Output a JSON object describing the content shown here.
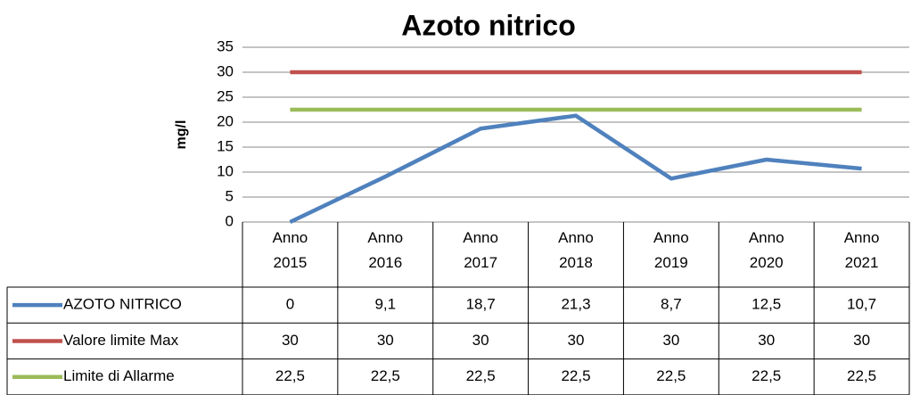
{
  "chart_data": {
    "type": "line",
    "title": "Azoto nitrico",
    "y_label": "mg/l",
    "categories": [
      "Anno 2015",
      "Anno 2016",
      "Anno 2017",
      "Anno 2018",
      "Anno 2019",
      "Anno 2020",
      "Anno 2021"
    ],
    "series": [
      {
        "name": "AZOTO NITRICO",
        "color": "#4f81bd",
        "values": [
          0,
          9.1,
          18.7,
          21.3,
          8.7,
          12.5,
          10.7
        ],
        "value_labels": [
          "0",
          "9,1",
          "18,7",
          "21,3",
          "8,7",
          "12,5",
          "10,7"
        ]
      },
      {
        "name": "Valore limite Max",
        "color": "#c0504d",
        "values": [
          30,
          30,
          30,
          30,
          30,
          30,
          30
        ]
      },
      {
        "name": "Limite di Allarme",
        "color": "#9bbb59",
        "values": [
          22.5,
          22.5,
          22.5,
          22.5,
          22.5,
          22.5,
          22.5
        ],
        "value_labels": [
          "22,5",
          "22,5",
          "22,5",
          "22,5",
          "22,5",
          "22,5",
          "22,5"
        ]
      }
    ],
    "ylim": [
      0,
      35
    ],
    "yticks": [
      0,
      5,
      10,
      15,
      20,
      25,
      30,
      35
    ],
    "grid": true,
    "data_table": true
  }
}
